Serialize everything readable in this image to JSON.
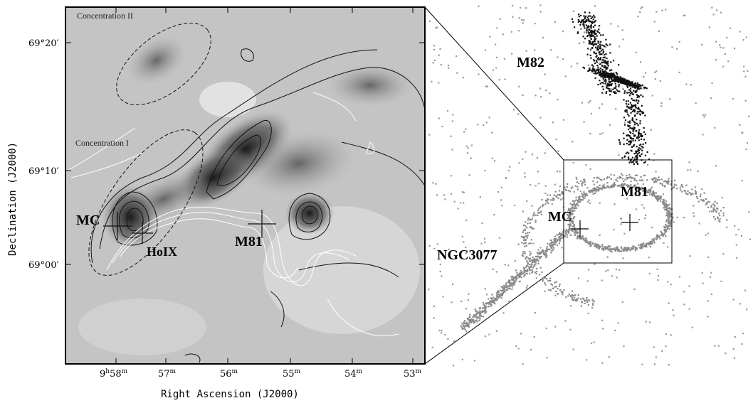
{
  "left_panel": {
    "concentration_labels": [
      "Concentration II",
      "Concentration I"
    ],
    "object_labels": [
      "MC",
      "HoIX",
      "M81"
    ],
    "y_ticks": [
      {
        "deg": "69°",
        "min": "20′"
      },
      {
        "deg": "69°",
        "min": "10′"
      },
      {
        "deg": "69°",
        "min": "00′"
      }
    ],
    "x_ticks": [
      {
        "h": "9",
        "hsup": "h",
        "m": "58",
        "msup": "m"
      },
      {
        "m": "57",
        "msup": "m"
      },
      {
        "m": "56",
        "msup": "m"
      },
      {
        "m": "55",
        "msup": "m"
      },
      {
        "m": "54",
        "msup": "m"
      },
      {
        "m": "53",
        "msup": "m"
      }
    ],
    "xlabel": "Right Ascension (J2000)",
    "ylabel": "Declination (J2000)"
  },
  "right_panel": {
    "labels": [
      "M82",
      "M81",
      "MC",
      "NGC3077"
    ]
  },
  "colors": {
    "background": "#ffffff",
    "contour_dark": "#111111",
    "contour_light": "#ffffff",
    "galaxy_dark": "#111111",
    "galaxy_gray": "#8a8a8a"
  }
}
